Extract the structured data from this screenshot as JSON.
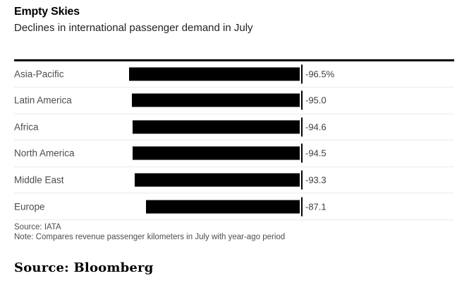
{
  "header": {
    "title": "Empty Skies",
    "subtitle": "Declines in international passenger demand in July"
  },
  "chart_data": {
    "type": "bar",
    "orientation": "horizontal",
    "title": "Empty Skies",
    "subtitle": "Declines in international passenger demand in July",
    "categories": [
      "Asia-Pacific",
      "Latin America",
      "Africa",
      "North America",
      "Middle East",
      "Europe"
    ],
    "values": [
      -96.5,
      -95.0,
      -94.6,
      -94.5,
      -93.3,
      -87.1
    ],
    "value_labels": [
      "-96.5%",
      "-95.0",
      "-94.6",
      "-94.5",
      "-93.3",
      "-87.1"
    ],
    "unit": "%",
    "xlim": [
      -100,
      0
    ],
    "bars_right_aligned_at_zero": true,
    "grid": false,
    "legend": "none"
  },
  "footer": {
    "source": "Source: IATA",
    "note": "Note: Compares revenue passenger kilometers in July with year-ago period",
    "attribution": "Source: Bloomberg"
  },
  "colors": {
    "bar": "#000000",
    "rule": "#000000",
    "zero_tick": "#000000",
    "category_label": "#4d4d4d",
    "value_label": "#3d3d3d",
    "separator": "#ebebeb"
  }
}
